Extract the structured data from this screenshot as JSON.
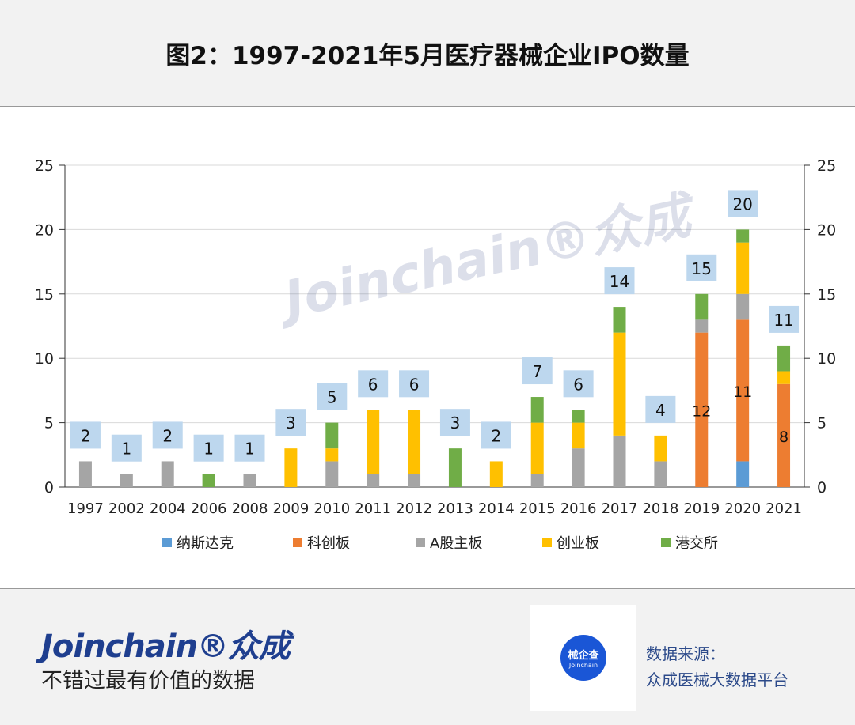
{
  "header": {
    "title": "图2：1997-2021年5月医疗器械企业IPO数量"
  },
  "watermark": "Joinchain®众成",
  "chart_data": {
    "type": "bar",
    "stacked": true,
    "title": "图2：1997-2021年5月医疗器械企业IPO数量",
    "categories": [
      "1997",
      "2002",
      "2004",
      "2006",
      "2008",
      "2009",
      "2010",
      "2011",
      "2012",
      "2013",
      "2014",
      "2015",
      "2016",
      "2017",
      "2018",
      "2019",
      "2020",
      "2021"
    ],
    "series": [
      {
        "name": "纳斯达克",
        "color": "#5b9bd5",
        "values": [
          0,
          0,
          0,
          0,
          0,
          0,
          0,
          0,
          0,
          0,
          0,
          0,
          0,
          0,
          0,
          0,
          2,
          0
        ]
      },
      {
        "name": "科创板",
        "color": "#ed7d31",
        "values": [
          0,
          0,
          0,
          0,
          0,
          0,
          0,
          0,
          0,
          0,
          0,
          0,
          0,
          0,
          0,
          12,
          11,
          8
        ]
      },
      {
        "name": "A股主板",
        "color": "#a5a5a5",
        "values": [
          2,
          1,
          2,
          0,
          1,
          0,
          2,
          1,
          1,
          0,
          0,
          1,
          3,
          4,
          2,
          1,
          2,
          0
        ]
      },
      {
        "name": "创业板",
        "color": "#ffc000",
        "values": [
          0,
          0,
          0,
          0,
          0,
          3,
          1,
          5,
          5,
          0,
          2,
          4,
          2,
          8,
          2,
          0,
          4,
          1
        ]
      },
      {
        "name": "港交所",
        "color": "#70ad47",
        "values": [
          0,
          0,
          0,
          1,
          0,
          0,
          2,
          0,
          0,
          3,
          0,
          2,
          1,
          2,
          0,
          2,
          1,
          2
        ]
      }
    ],
    "totals": [
      2,
      1,
      2,
      1,
      1,
      3,
      5,
      6,
      6,
      3,
      2,
      7,
      6,
      14,
      4,
      15,
      20,
      11
    ],
    "inner_labels": {
      "series": "科创板",
      "show_for": [
        "2019",
        "2020",
        "2021"
      ]
    },
    "ylim": [
      0,
      25
    ],
    "yticks": [
      0,
      5,
      10,
      15,
      20,
      25
    ],
    "grid": true,
    "legend": "bottom",
    "xlabel": "",
    "ylabel": ""
  },
  "footer": {
    "brand": "Joinchain®众成",
    "slogan": "不错过最有价值的数据",
    "qr_label": "械企查",
    "qr_brand": "Joinchain",
    "source_label": "数据来源：",
    "source_value": "众成医械大数据平台"
  }
}
